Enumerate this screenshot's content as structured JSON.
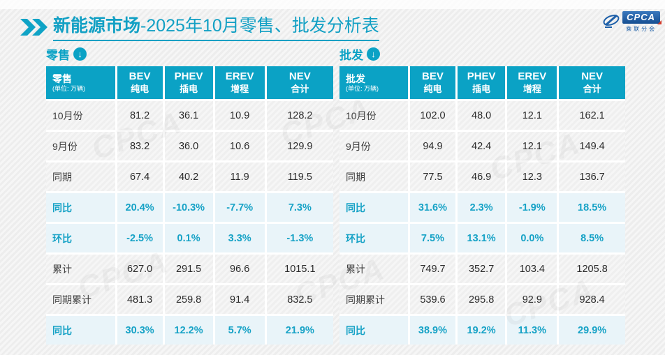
{
  "page": {
    "title_bold": "新能源市场",
    "title_rest": "-2025年10月零售、批发分析表",
    "accent_color": "#0ba2c5",
    "highlight_row_color": "#e9f4f9",
    "logo": {
      "text": "CPCA",
      "subtext": "乘联分会"
    },
    "watermark_text": "CPCA"
  },
  "sections": [
    {
      "label": "零售",
      "icon": "circle-down-arrow-icon"
    },
    {
      "label": "批发",
      "icon": "circle-down-arrow-icon"
    }
  ],
  "chart_data": [
    {
      "type": "table",
      "title": "零售",
      "unit_note": "(单位: 万辆)",
      "columns": [
        [
          "BEV",
          "纯电"
        ],
        [
          "PHEV",
          "插电"
        ],
        [
          "EREV",
          "增程"
        ],
        [
          "NEV",
          "合计"
        ]
      ],
      "rows": [
        {
          "label": "10月份",
          "values": [
            "81.2",
            "36.1",
            "10.9",
            "128.2"
          ],
          "highlight": false
        },
        {
          "label": "9月份",
          "values": [
            "83.2",
            "36.0",
            "10.6",
            "129.9"
          ],
          "highlight": false
        },
        {
          "label": "同期",
          "values": [
            "67.4",
            "40.2",
            "11.9",
            "119.5"
          ],
          "highlight": false
        },
        {
          "label": "同比",
          "values": [
            "20.4%",
            "-10.3%",
            "-7.7%",
            "7.3%"
          ],
          "highlight": true
        },
        {
          "label": "环比",
          "values": [
            "-2.5%",
            "0.1%",
            "3.3%",
            "-1.3%"
          ],
          "highlight": true
        },
        {
          "label": "累计",
          "values": [
            "627.0",
            "291.5",
            "96.6",
            "1015.1"
          ],
          "highlight": false
        },
        {
          "label": "同期累计",
          "values": [
            "481.3",
            "259.8",
            "91.4",
            "832.5"
          ],
          "highlight": false
        },
        {
          "label": "同比",
          "values": [
            "30.3%",
            "12.2%",
            "5.7%",
            "21.9%"
          ],
          "highlight": true
        }
      ]
    },
    {
      "type": "table",
      "title": "批发",
      "unit_note": "(单位: 万辆)",
      "columns": [
        [
          "BEV",
          "纯电"
        ],
        [
          "PHEV",
          "插电"
        ],
        [
          "EREV",
          "增程"
        ],
        [
          "NEV",
          "合计"
        ]
      ],
      "rows": [
        {
          "label": "10月份",
          "values": [
            "102.0",
            "48.0",
            "12.1",
            "162.1"
          ],
          "highlight": false
        },
        {
          "label": "9月份",
          "values": [
            "94.9",
            "42.4",
            "12.1",
            "149.4"
          ],
          "highlight": false
        },
        {
          "label": "同期",
          "values": [
            "77.5",
            "46.9",
            "12.3",
            "136.7"
          ],
          "highlight": false
        },
        {
          "label": "同比",
          "values": [
            "31.6%",
            "2.3%",
            "-1.9%",
            "18.5%"
          ],
          "highlight": true
        },
        {
          "label": "环比",
          "values": [
            "7.5%",
            "13.1%",
            "0.0%",
            "8.5%"
          ],
          "highlight": true
        },
        {
          "label": "累计",
          "values": [
            "749.7",
            "352.7",
            "103.4",
            "1205.8"
          ],
          "highlight": false
        },
        {
          "label": "同期累计",
          "values": [
            "539.6",
            "295.8",
            "92.9",
            "928.4"
          ],
          "highlight": false
        },
        {
          "label": "同比",
          "values": [
            "38.9%",
            "19.2%",
            "11.3%",
            "29.9%"
          ],
          "highlight": true
        }
      ]
    }
  ]
}
